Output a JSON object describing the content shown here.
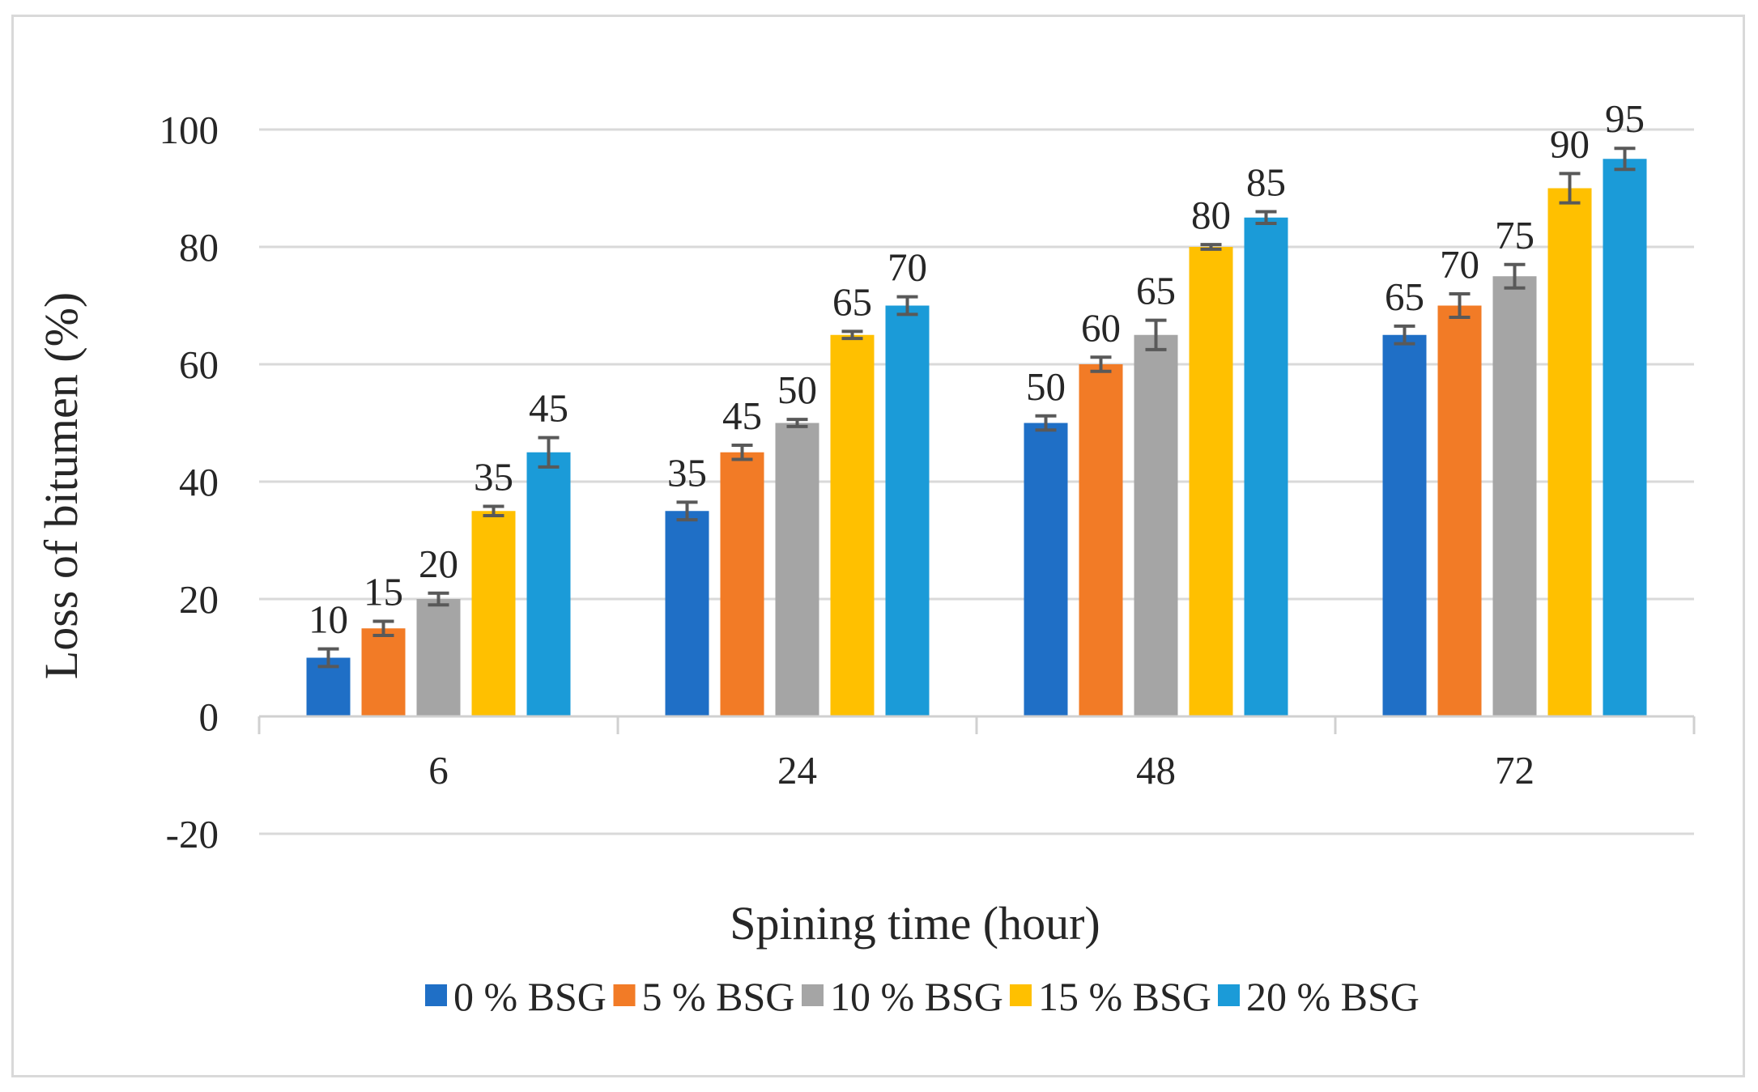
{
  "chart_data": {
    "type": "bar",
    "title": "",
    "xlabel": "Spining time (hour)",
    "ylabel": "Loss of bitumen (%)",
    "categories": [
      "6",
      "24",
      "48",
      "72"
    ],
    "ylim": [
      -20,
      100
    ],
    "yticks": [
      -20,
      0,
      20,
      40,
      60,
      80,
      100
    ],
    "ytick_labels": [
      "-20",
      "0",
      "20",
      "40",
      "60",
      "80",
      "100"
    ],
    "grid": true,
    "legend_position": "bottom",
    "error_bars": true,
    "series": [
      {
        "name": "0 % BSG",
        "color": "#1f6fc6",
        "values": [
          10,
          35,
          50,
          65
        ],
        "errors": [
          1.5,
          1.5,
          1.2,
          1.5
        ]
      },
      {
        "name": "5 % BSG",
        "color": "#f27b26",
        "values": [
          15,
          45,
          60,
          70
        ],
        "errors": [
          1.2,
          1.2,
          1.2,
          2.0
        ]
      },
      {
        "name": "10 % BSG",
        "color": "#a5a5a5",
        "values": [
          20,
          50,
          65,
          75
        ],
        "errors": [
          1.0,
          0.6,
          2.5,
          2.0
        ]
      },
      {
        "name": "15 % BSG",
        "color": "#ffc000",
        "values": [
          35,
          65,
          80,
          90
        ],
        "errors": [
          0.8,
          0.6,
          0.4,
          2.5
        ]
      },
      {
        "name": "20 % BSG",
        "color": "#1b9bd8",
        "values": [
          45,
          70,
          85,
          95
        ],
        "errors": [
          2.5,
          1.5,
          1.0,
          1.8
        ]
      }
    ]
  }
}
